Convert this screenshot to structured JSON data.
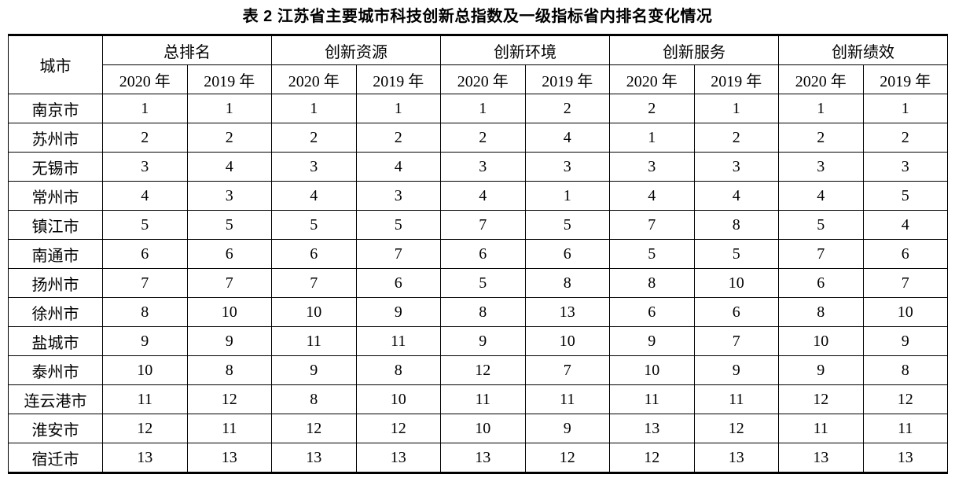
{
  "caption": "表 2 江苏省主要城市科技创新总指数及一级指标省内排名变化情况",
  "colors": {
    "text": "#000000",
    "border": "#000000",
    "background": "#ffffff"
  },
  "table": {
    "city_header": "城市",
    "groups": [
      {
        "label": "总排名"
      },
      {
        "label": "创新资源"
      },
      {
        "label": "创新环境"
      },
      {
        "label": "创新服务"
      },
      {
        "label": "创新绩效"
      }
    ],
    "year_headers": [
      "2020 年",
      "2019 年"
    ],
    "rows": [
      {
        "city": "南京市",
        "values": [
          1,
          1,
          1,
          1,
          1,
          2,
          2,
          1,
          1,
          1
        ]
      },
      {
        "city": "苏州市",
        "values": [
          2,
          2,
          2,
          2,
          2,
          4,
          1,
          2,
          2,
          2
        ]
      },
      {
        "city": "无锡市",
        "values": [
          3,
          4,
          3,
          4,
          3,
          3,
          3,
          3,
          3,
          3
        ]
      },
      {
        "city": "常州市",
        "values": [
          4,
          3,
          4,
          3,
          4,
          1,
          4,
          4,
          4,
          5
        ]
      },
      {
        "city": "镇江市",
        "values": [
          5,
          5,
          5,
          5,
          7,
          5,
          7,
          8,
          5,
          4
        ]
      },
      {
        "city": "南通市",
        "values": [
          6,
          6,
          6,
          7,
          6,
          6,
          5,
          5,
          7,
          6
        ]
      },
      {
        "city": "扬州市",
        "values": [
          7,
          7,
          7,
          6,
          5,
          8,
          8,
          10,
          6,
          7
        ]
      },
      {
        "city": "徐州市",
        "values": [
          8,
          10,
          10,
          9,
          8,
          13,
          6,
          6,
          8,
          10
        ]
      },
      {
        "city": "盐城市",
        "values": [
          9,
          9,
          11,
          11,
          9,
          10,
          9,
          7,
          10,
          9
        ]
      },
      {
        "city": "泰州市",
        "values": [
          10,
          8,
          9,
          8,
          12,
          7,
          10,
          9,
          9,
          8
        ]
      },
      {
        "city": "连云港市",
        "values": [
          11,
          12,
          8,
          10,
          11,
          11,
          11,
          11,
          12,
          12
        ]
      },
      {
        "city": "淮安市",
        "values": [
          12,
          11,
          12,
          12,
          10,
          9,
          13,
          12,
          11,
          11
        ]
      },
      {
        "city": "宿迁市",
        "values": [
          13,
          13,
          13,
          13,
          13,
          12,
          12,
          13,
          13,
          13
        ]
      }
    ]
  }
}
